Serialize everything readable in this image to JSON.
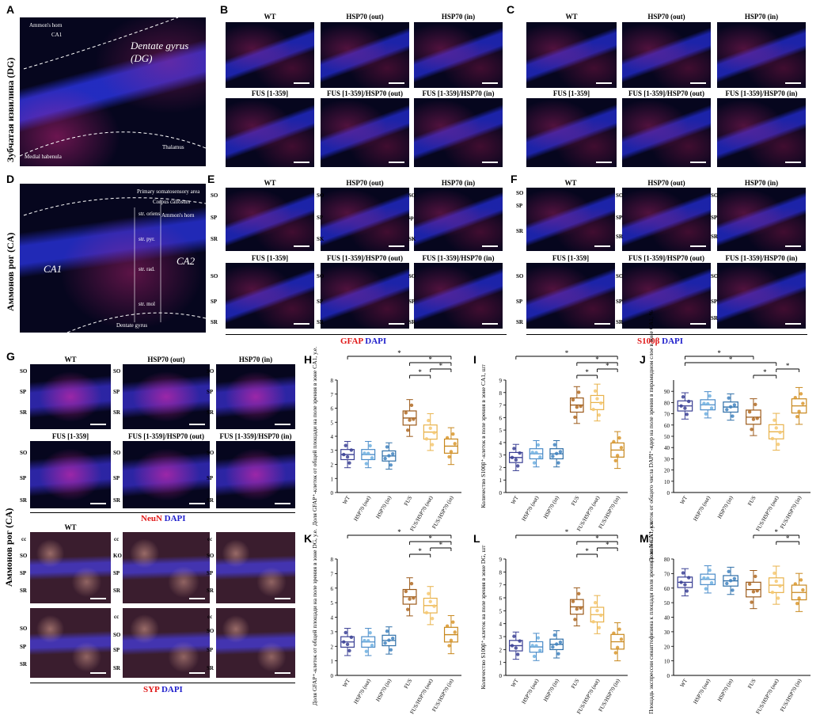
{
  "panel_letters": {
    "A": "A",
    "B": "B",
    "C": "C",
    "D": "D",
    "E": "E",
    "F": "F",
    "G": "G",
    "H": "H",
    "I": "I",
    "J": "J",
    "K": "K",
    "L": "L",
    "M": "M"
  },
  "row_labels": {
    "dg": "Зубчатая извилина (DG)",
    "ca_top": "Аммонов рог (CA)",
    "ca_bottom": "Аммонов рог (CA)"
  },
  "panel_a": {
    "ammons_horn": "Ammon's horn",
    "ca1": "CA1",
    "dentate_gyrus": "Dentate gyrus (DG)",
    "medial_habenula": "Medial habenula",
    "thalamus": "Thalamus"
  },
  "panel_d": {
    "primary_somatosensory": "Primary somatosensory area",
    "corpus_callosum": "Corpus callosum",
    "str_oriens": "str. oriens",
    "ammons_horn": "Ammon's horn",
    "str_pyr": "str. pyr.",
    "ca1": "CA1",
    "ca2": "CA2",
    "str_rad": "str. rad.",
    "str_mol": "str. mol",
    "dentate_gyrus": "Dentate gyrus"
  },
  "group_titles": {
    "wt": "WT",
    "hsp_out": "HSP70 (out)",
    "hsp_in": "HSP70 (in)",
    "fus": "FUS [1-359]",
    "fus_hsp_out": "FUS [1-359]/HSP70 (out)",
    "fus_hsp_in": "FUS [1-359]/HSP70 (in)"
  },
  "layers": {
    "so": "SO",
    "sp": "SP",
    "sr": "SR",
    "cc": "cc",
    "ko": "KO",
    "sk": "SK",
    "sp_lower": "sp",
    "sk_lower": "SK"
  },
  "stain_legends": {
    "gfap": "GFAP",
    "s100b": "S100β",
    "neun": "NeuN",
    "syp": "SYP",
    "dapi": "DAPI"
  },
  "significance_mark": "*",
  "chart_data": [
    {
      "panel": "H",
      "type": "box",
      "ylabel": "Доля GFAP⁺-клеток от общей площади на поле зрения в зоне CA1, у.е.",
      "ylim": [
        0,
        8
      ],
      "categories": [
        "WT",
        "HSP70 (out)",
        "HSP70 (in)",
        "FUS",
        "FUS/HSP70 (out)",
        "FUS/HSP70 (in)"
      ],
      "series": [
        {
          "values": [
            2.7,
            2.7,
            2.6,
            5.3,
            4.3,
            3.3
          ]
        }
      ]
    },
    {
      "panel": "I",
      "type": "box",
      "ylabel": "Количество S100β⁺-клеток в поле зрения в зоне CA1, шт",
      "ylim": [
        0,
        9
      ],
      "yticks": [
        0,
        1,
        2,
        3,
        4,
        5,
        6,
        7,
        8,
        9
      ],
      "categories": [
        "WT",
        "HSP70 (out)",
        "HSP70 (in)",
        "FUS",
        "FUS/HSP70 (out)",
        "FUS/HSP70 (in)"
      ],
      "series": [
        {
          "values": [
            2.8,
            3.1,
            3.1,
            7.0,
            7.2,
            3.4
          ]
        }
      ]
    },
    {
      "panel": "J",
      "type": "box",
      "ylabel": "Доля NeuN⁺-клеток от общего числа DAPI⁺-ядер на поле зрения в пирамидном слое в зоне CA1, %",
      "ylim": [
        0,
        100
      ],
      "yticks": [
        0,
        10,
        20,
        30,
        40,
        50,
        60,
        70,
        80,
        90
      ],
      "categories": [
        "WT",
        "HSP70 (out)",
        "HSP70 (in)",
        "FUS",
        "FUS/HSP70 (out)",
        "FUS/HSP70 (in)"
      ],
      "series": [
        {
          "values": [
            77,
            78,
            76,
            67,
            54,
            77
          ]
        }
      ]
    },
    {
      "panel": "K",
      "type": "box",
      "ylabel": "Доля GFAP⁺-клеток от общей площади на поле зрения в зоне DG, у.е.",
      "ylim": [
        0,
        8
      ],
      "categories": [
        "WT",
        "HSP70 (out)",
        "HSP70 (in)",
        "FUS",
        "FUS/HSP70 (out)",
        "FUS/HSP70 (in)"
      ],
      "series": [
        {
          "values": [
            2.3,
            2.3,
            2.4,
            5.4,
            4.8,
            2.8
          ]
        }
      ]
    },
    {
      "panel": "L",
      "type": "box",
      "ylabel": "Количество S100β⁺-клеток на поле зрения в зоне DG, шт",
      "ylim": [
        0,
        9
      ],
      "yticks": [
        0,
        1,
        2,
        3,
        4,
        5,
        6,
        7,
        8,
        9
      ],
      "categories": [
        "WT",
        "HSP70 (out)",
        "HSP70 (in)",
        "FUS",
        "FUS/HSP70 (out)",
        "FUS/HSP70 (in)"
      ],
      "series": [
        {
          "values": [
            2.3,
            2.2,
            2.4,
            5.3,
            4.7,
            2.6
          ]
        }
      ]
    },
    {
      "panel": "M",
      "type": "box",
      "ylabel": "Площадь экспрессии синаптофизина к площади поля зрения в зоне CA1, у.е.",
      "ylim": [
        0,
        80
      ],
      "yticks": [
        0,
        10,
        20,
        30,
        40,
        50,
        60,
        70,
        80
      ],
      "categories": [
        "WT",
        "HSP70 (out)",
        "HSP70 (in)",
        "FUS",
        "FUS/HSP70 (out)",
        "FUS/HSP70 (in)"
      ],
      "series": [
        {
          "values": [
            64,
            66,
            65,
            59,
            62,
            57
          ]
        }
      ]
    }
  ]
}
